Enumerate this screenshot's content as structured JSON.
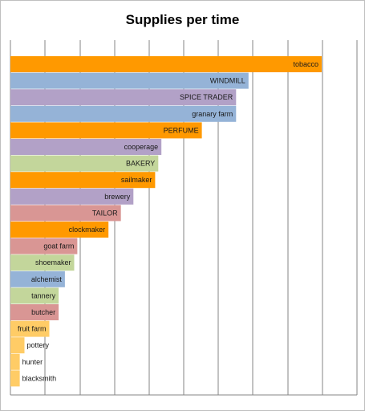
{
  "chart_data": {
    "type": "bar",
    "orientation": "horizontal",
    "title": "Supplies per time",
    "xlabel": "",
    "ylabel": "",
    "xlim": [
      0,
      100
    ],
    "grid": true,
    "legend": "none",
    "categories": [
      "tobacco",
      "WINDMILL",
      "SPICE TRADER",
      "granary farm",
      "PERFUME",
      "cooperage",
      "BAKERY",
      "sailmaker",
      "brewery",
      "TAILOR",
      "clockmaker",
      "goat farm",
      "shoemaker",
      "alchemist",
      "tannery",
      "butcher",
      "fruit farm",
      "pottery",
      "hunter",
      "blacksmith"
    ],
    "values": [
      100,
      76.5,
      72.5,
      72.5,
      61.5,
      48.5,
      47.5,
      46.5,
      39.5,
      35.5,
      31.5,
      21.5,
      20.5,
      17.5,
      15.5,
      15.5,
      12.5,
      4.5,
      3.0,
      3.0
    ],
    "colors": [
      "#ff9900",
      "#95b3d7",
      "#b2a1c7",
      "#95b3d7",
      "#ff9900",
      "#b2a1c7",
      "#c3d69b",
      "#ff9900",
      "#b2a1c7",
      "#d99694",
      "#ff9900",
      "#d99694",
      "#c3d69b",
      "#95b3d7",
      "#c3d69b",
      "#d99694",
      "#ffcc66",
      "#ffcc66",
      "#ffcc66",
      "#ffcc66"
    ]
  }
}
